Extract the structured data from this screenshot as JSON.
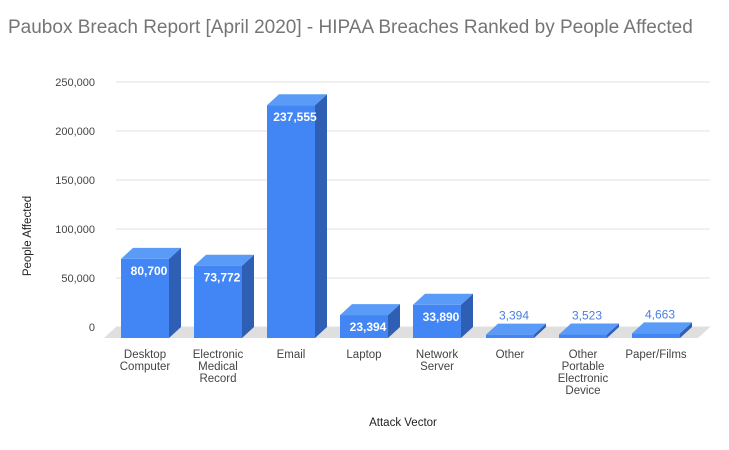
{
  "chart_data": {
    "type": "bar",
    "title": "Paubox Breach Report [April 2020] - HIPAA Breaches Ranked by People Affected",
    "xlabel": "Attack Vector",
    "ylabel": "People Affected",
    "ylim": [
      0,
      250000
    ],
    "yticks": [
      0,
      50000,
      100000,
      150000,
      200000,
      250000
    ],
    "ytick_labels": [
      "0",
      "50,000",
      "100,000",
      "150,000",
      "200,000",
      "250,000"
    ],
    "categories": [
      "Desktop Computer",
      "Electronic Medical Record",
      "Email",
      "Laptop",
      "Network Server",
      "Other",
      "Other Portable Electronic Device",
      "Paper/Films"
    ],
    "category_lines": [
      [
        "Desktop",
        "Computer"
      ],
      [
        "Electronic",
        "Medical",
        "Record"
      ],
      [
        "Email"
      ],
      [
        "Laptop"
      ],
      [
        "Network",
        "Server"
      ],
      [
        "Other"
      ],
      [
        "Other",
        "Portable",
        "Electronic",
        "Device"
      ],
      [
        "Paper/Films"
      ]
    ],
    "values": [
      80700,
      73772,
      237555,
      23394,
      33890,
      3394,
      3523,
      4663
    ],
    "value_labels": [
      "80,700",
      "73,772",
      "237,555",
      "23,394",
      "33,890",
      "3,394",
      "3,523",
      "4,663"
    ],
    "grid": true,
    "legend": "none",
    "style": "3d",
    "colors": {
      "bar_front": "#4285f4",
      "bar_top": "#5b9bf8",
      "bar_side": "#2f5fb4",
      "floor": "#dfdfdf",
      "grid": "#e0e0e0"
    }
  }
}
